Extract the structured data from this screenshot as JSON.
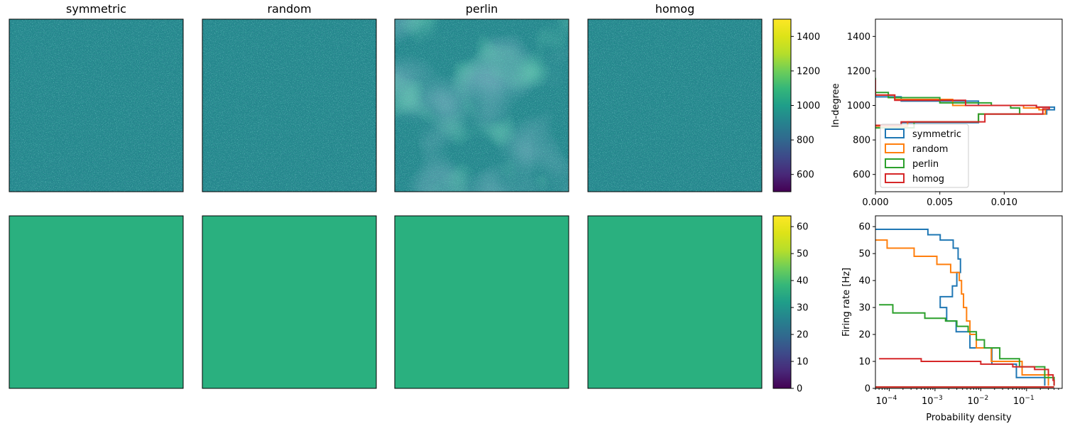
{
  "chart_data": [
    {
      "type": "heatmap",
      "panels": [
        "symmetric",
        "random",
        "perlin",
        "homog"
      ],
      "colormap": "viridis",
      "pattern": "noisy",
      "mean": 1000,
      "colorbar": {
        "range": [
          500,
          1500
        ],
        "ticks": [
          "600",
          "800",
          "1000",
          "1200",
          "1400"
        ]
      }
    },
    {
      "type": "heatmap",
      "panels": [
        "symmetric",
        "random",
        "perlin",
        "homog"
      ],
      "colormap": "viridis",
      "pattern": "uniform",
      "color": "#2ab07f",
      "colorbar": {
        "range": [
          0,
          64
        ],
        "ticks": [
          "0",
          "10",
          "20",
          "30",
          "40",
          "50",
          "60"
        ]
      }
    },
    {
      "type": "histogram",
      "orientation": "horizontal",
      "ylabel": "In-degree",
      "xlim": [
        0,
        0.0145
      ],
      "ylim": [
        500,
        1500
      ],
      "xticks": [
        "0.000",
        "0.005",
        "0.010"
      ],
      "yticks": [
        "600",
        "800",
        "1000",
        "1200",
        "1400"
      ],
      "legend": "lower-left",
      "series": [
        {
          "name": "symmetric",
          "color": "#1f77b4",
          "x": [
            0,
            0.002,
            0.008,
            0.0133,
            0.0139,
            0.0125,
            0.008,
            0.002,
            0
          ],
          "y": [
            880,
            900,
            950,
            975,
            990,
            1000,
            1025,
            1050,
            1150
          ]
        },
        {
          "name": "random",
          "color": "#ff7f0e",
          "x": [
            0,
            0.0025,
            0.008,
            0.0132,
            0.0127,
            0.0115,
            0.006,
            0.0015,
            0
          ],
          "y": [
            880,
            905,
            950,
            975,
            985,
            1000,
            1035,
            1060,
            1130
          ]
        },
        {
          "name": "perlin",
          "color": "#2ca02c",
          "x": [
            0,
            0.003,
            0.008,
            0.0112,
            0.0105,
            0.009,
            0.005,
            0.001,
            0
          ],
          "y": [
            870,
            905,
            950,
            985,
            1000,
            1015,
            1045,
            1075,
            1160
          ]
        },
        {
          "name": "homog",
          "color": "#d62728",
          "x": [
            0,
            0.002,
            0.0085,
            0.013,
            0.0135,
            0.0125,
            0.007,
            0.0015,
            0
          ],
          "y": [
            885,
            905,
            950,
            980,
            990,
            1000,
            1030,
            1060,
            1150
          ]
        }
      ]
    },
    {
      "type": "histogram",
      "orientation": "horizontal",
      "xlabel": "Probability density",
      "ylabel": "Firing rate [Hz]",
      "xscale": "log",
      "xlim": [
        5e-05,
        0.6
      ],
      "ylim": [
        0,
        64
      ],
      "xticks": [
        "10",
        "10",
        "10",
        "10"
      ],
      "xtick_exponents": [
        "−4",
        "−3",
        "−2",
        "−1"
      ],
      "yticks": [
        "0",
        "10",
        "20",
        "30",
        "40",
        "50",
        "60"
      ],
      "series": [
        {
          "name": "symmetric",
          "color": "#1f77b4",
          "x": [
            5e-05,
            0.00025,
            0.0007,
            0.0013,
            0.0025,
            0.0032,
            0.0036,
            0.003,
            0.0024,
            0.0013,
            0.0018,
            0.0029,
            0.0058,
            0.0175,
            0.06,
            0.25
          ],
          "y": [
            59,
            59,
            57,
            55,
            52,
            48,
            43,
            38,
            34,
            30,
            25,
            21,
            15,
            9,
            4,
            1
          ]
        },
        {
          "name": "random",
          "color": "#ff7f0e",
          "x": [
            5e-05,
            9e-05,
            0.00035,
            0.0011,
            0.0022,
            0.0034,
            0.0038,
            0.0042,
            0.0049,
            0.0058,
            0.008,
            0.017,
            0.08,
            0.3
          ],
          "y": [
            55,
            52,
            49,
            46,
            43,
            40,
            35,
            30,
            25,
            20,
            15,
            10,
            5,
            1
          ]
        },
        {
          "name": "perlin",
          "color": "#2ca02c",
          "x": [
            6e-05,
            0.00012,
            0.0006,
            0.0017,
            0.003,
            0.0053,
            0.008,
            0.012,
            0.026,
            0.07,
            0.25,
            0.4
          ],
          "y": [
            31,
            28,
            26,
            25,
            23,
            21,
            18,
            15,
            11,
            8,
            4,
            1
          ]
        },
        {
          "name": "homog",
          "color": "#d62728",
          "x": [
            6e-05,
            0.0005,
            0.01,
            0.05,
            0.15,
            0.3,
            0.38,
            0.4
          ],
          "y": [
            11,
            10,
            9,
            8,
            7,
            5,
            3,
            1
          ]
        }
      ]
    }
  ]
}
